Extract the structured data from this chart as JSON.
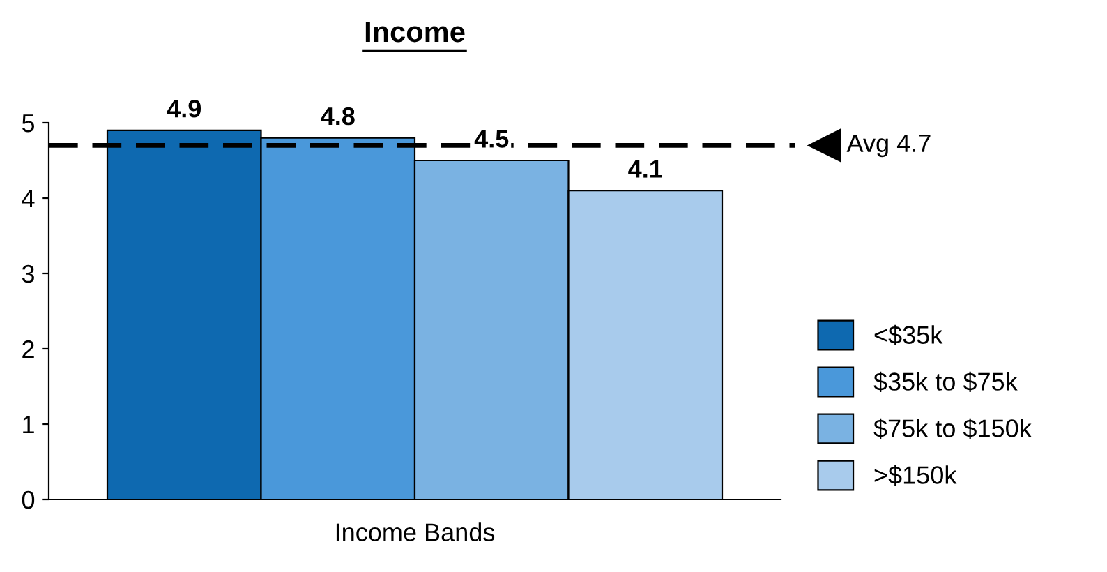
{
  "chart_data": {
    "type": "bar",
    "title": "Income",
    "categories": [
      "Income Bands"
    ],
    "series": [
      {
        "name": "<$35k",
        "color": "#0e69b0",
        "values": [
          4.9
        ]
      },
      {
        "name": "$35k to $75k",
        "color": "#4a98da",
        "values": [
          4.8
        ]
      },
      {
        "name": "$75k to $150k",
        "color": "#7ab2e2",
        "values": [
          4.5
        ]
      },
      {
        "name": ">$150k",
        "color": "#a8cbec",
        "values": [
          4.1
        ]
      }
    ],
    "ylim": [
      0,
      5
    ],
    "yticks": [
      0,
      1,
      2,
      3,
      4,
      5
    ],
    "ref_lines": [
      {
        "axis": "y",
        "value": 4.7,
        "label": "Avg 4.7",
        "line_style": "dashed",
        "color": "#000000"
      }
    ],
    "data_labels": true,
    "legend": "right",
    "grid": false
  }
}
